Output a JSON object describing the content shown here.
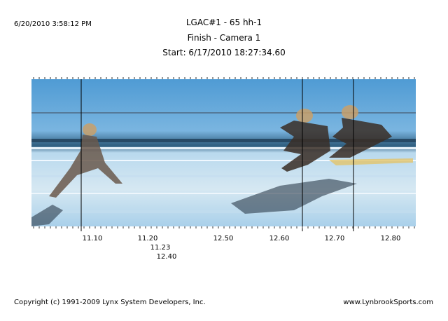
{
  "header": {
    "timestamp": "6/20/2010 3:58:12 PM",
    "title": "LGAC#1 - 65 hh-1",
    "subtitle": "Finish - Camera 1",
    "start": "Start: 6/17/2010 18:27:34.60"
  },
  "time_labels": [
    "11.10",
    "11.20",
    "12.50",
    "12.60",
    "12.70",
    "12.80"
  ],
  "finish_times": [
    "11.23",
    "12.40"
  ],
  "footer": {
    "copyright": "Copyright (c) 1991-2009 Lynx System Developers, Inc.",
    "website": "www.LynbrookSports.com"
  }
}
